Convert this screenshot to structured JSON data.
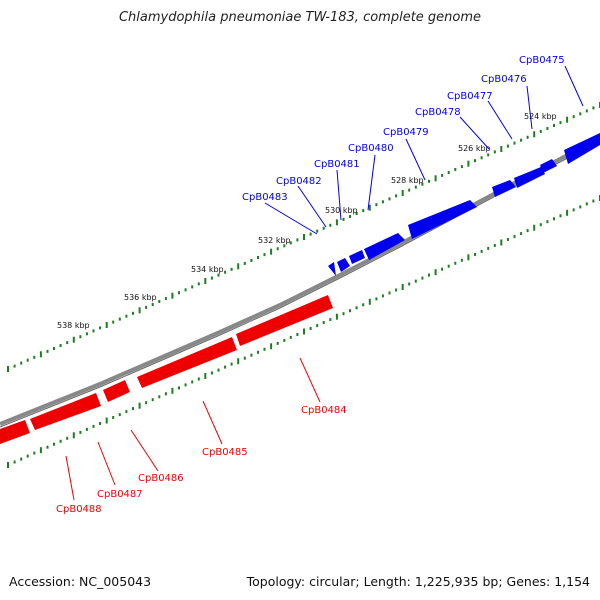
{
  "title": "Chlamydophila pneumoniae TW-183, complete genome",
  "footer": {
    "accession": "Accession: NC_005043",
    "summary": "Topology: circular; Length: 1,225,935 bp; Genes: 1,154"
  },
  "colors": {
    "forward": "#0000ee",
    "reverse": "#ee0000",
    "backbone": "#888888",
    "ticks": "#1e7d1e"
  },
  "scale_labels": [
    "524 kbp",
    "526 kbp",
    "528 kbp",
    "530 kbp",
    "532 kbp",
    "534 kbp",
    "536 kbp",
    "538 kbp"
  ],
  "forward_genes": [
    "CpB0475",
    "CpB0476",
    "CpB0477",
    "CpB0478",
    "CpB0479",
    "CpB0480",
    "CpB0481",
    "CpB0482",
    "CpB0483"
  ],
  "reverse_genes": [
    "CpB0484",
    "CpB0485",
    "CpB0486",
    "CpB0487",
    "CpB0488"
  ]
}
